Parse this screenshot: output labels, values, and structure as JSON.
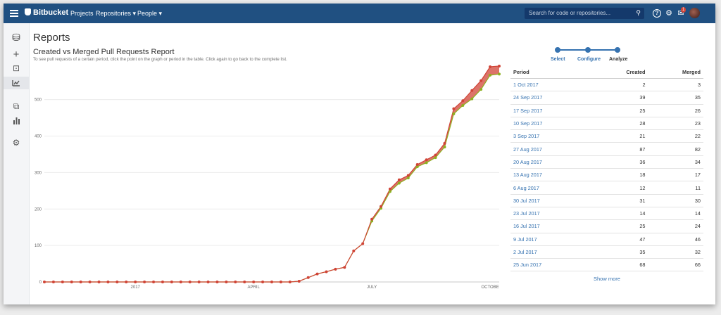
{
  "topbar": {
    "app_name": "Bitbucket",
    "nav": [
      "Projects",
      "Repositories ▾",
      "People ▾"
    ],
    "search_placeholder": "Search for code or repositories...",
    "notification_count": "1"
  },
  "page": {
    "title": "Reports",
    "report_title": "Created vs Merged Pull Requests Report",
    "report_subtitle": "To see pull requests of a certain period, click the point on the graph or period in the table. Click again to go back to the complete list."
  },
  "wizard": {
    "steps": [
      "Select",
      "Configure",
      "Analyze"
    ]
  },
  "table": {
    "headers": [
      "Period",
      "Created",
      "Merged"
    ],
    "rows": [
      [
        "1 Oct 2017",
        "2",
        "3"
      ],
      [
        "24 Sep 2017",
        "39",
        "35"
      ],
      [
        "17 Sep 2017",
        "25",
        "26"
      ],
      [
        "10 Sep 2017",
        "28",
        "23"
      ],
      [
        "3 Sep 2017",
        "21",
        "22"
      ],
      [
        "27 Aug 2017",
        "87",
        "82"
      ],
      [
        "20 Aug 2017",
        "36",
        "34"
      ],
      [
        "13 Aug 2017",
        "18",
        "17"
      ],
      [
        "6 Aug 2017",
        "12",
        "11"
      ],
      [
        "30 Jul 2017",
        "31",
        "30"
      ],
      [
        "23 Jul 2017",
        "14",
        "14"
      ],
      [
        "16 Jul 2017",
        "25",
        "24"
      ],
      [
        "9 Jul 2017",
        "47",
        "46"
      ],
      [
        "2 Jul 2017",
        "35",
        "32"
      ],
      [
        "25 Jun 2017",
        "68",
        "66"
      ]
    ],
    "show_more": "Show more"
  },
  "colors": {
    "created": "#d04437",
    "merged": "#8eb021",
    "link": "#3572b0",
    "topbar": "#205081"
  },
  "chart_data": {
    "type": "area",
    "title": "Created vs Merged Pull Requests Report",
    "x_tick_labels": [
      "2017",
      "APRIL",
      "JULY",
      "OCTOBE"
    ],
    "x_tick_positions": [
      10,
      23,
      36,
      49
    ],
    "ylim": [
      0,
      590
    ],
    "y_ticks": [
      0,
      100,
      200,
      300,
      400,
      500
    ],
    "grid": true,
    "series": [
      {
        "values": [
          0,
          0,
          0,
          0,
          0,
          0,
          0,
          0,
          0,
          0,
          0,
          0,
          0,
          0,
          0,
          0,
          0,
          0,
          0,
          0,
          0,
          0,
          0,
          0,
          0,
          0,
          0,
          0,
          2,
          12,
          22,
          28,
          35,
          40,
          85,
          105,
          172,
          207,
          255,
          280,
          292,
          322,
          335,
          348,
          380,
          475,
          497,
          525,
          552,
          590,
          592
        ]
      },
      {
        "values": [
          0,
          0,
          0,
          0,
          0,
          0,
          0,
          0,
          0,
          0,
          0,
          0,
          0,
          0,
          0,
          0,
          0,
          0,
          0,
          0,
          0,
          0,
          0,
          0,
          0,
          0,
          0,
          0,
          2,
          12,
          22,
          28,
          35,
          40,
          85,
          105,
          167,
          202,
          248,
          271,
          285,
          316,
          327,
          341,
          370,
          461,
          484,
          502,
          528,
          567,
          570
        ]
      }
    ]
  }
}
